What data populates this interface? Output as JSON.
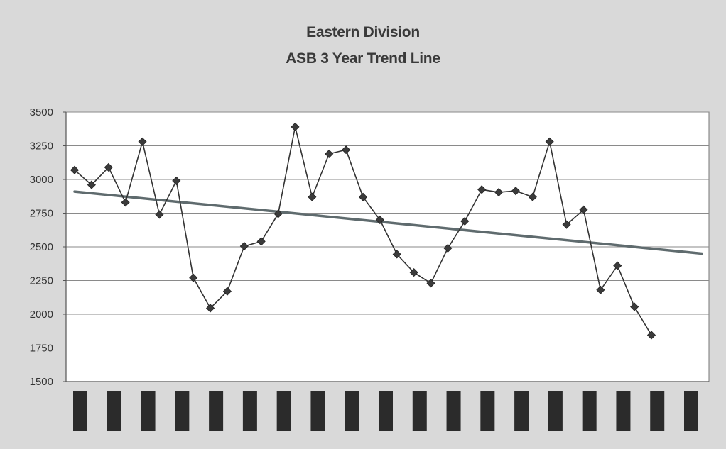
{
  "chart_data": {
    "type": "line",
    "title": "Eastern Division",
    "subtitle": "ASB 3 Year Trend Line",
    "xlabel": "",
    "ylabel": "",
    "ylim": [
      1500,
      3500
    ],
    "yticks": [
      1500,
      1750,
      2000,
      2250,
      2500,
      2750,
      3000,
      3250,
      3500
    ],
    "grid": true,
    "legend": "none",
    "x_tick_labels": "redacted",
    "redacted_label_count": 19,
    "series": [
      {
        "values": [
          3070,
          2960,
          3090,
          2830,
          3280,
          2740,
          2990,
          2270,
          2045,
          2170,
          2505,
          2540,
          2745,
          3390,
          2870,
          3190,
          3220,
          2870,
          2700,
          2445,
          2310,
          2230,
          2490,
          2690,
          2925,
          2905,
          2915,
          2870,
          3280,
          2665,
          2775,
          2180,
          2360,
          2055,
          1845
        ],
        "color": "#333333",
        "marker": "diamond"
      },
      {
        "type": "trendline",
        "start": 2910,
        "end": 2450,
        "color": "#5f6b6e"
      }
    ],
    "colors": {
      "plot_background": "#ffffff",
      "gridline": "#8a8a8a",
      "redaction": "#2b2b2b"
    }
  }
}
